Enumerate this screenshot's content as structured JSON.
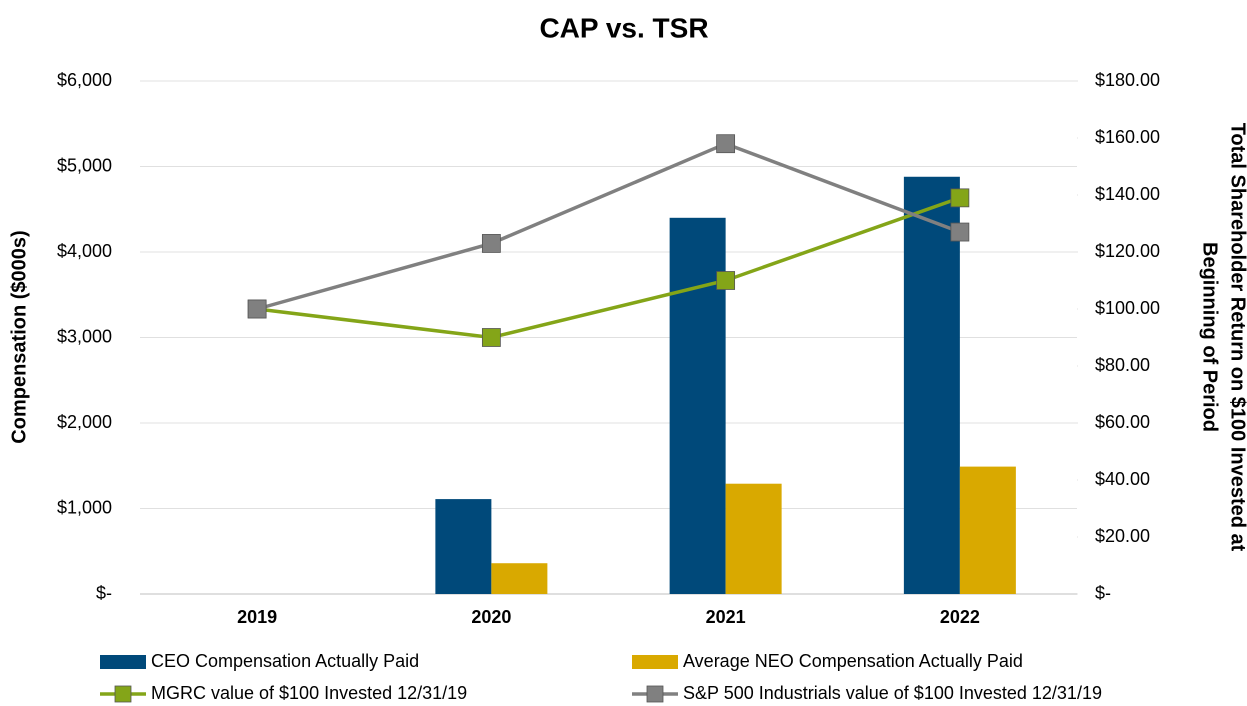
{
  "chart_data": {
    "type": "bar",
    "title": "CAP vs. TSR",
    "ylabel": "Compensation ($000s)",
    "y2label": [
      "Total Shareholder Return on $100 Invested at",
      "Beginning of Period"
    ],
    "categories": [
      "2019",
      "2020",
      "2021",
      "2022"
    ],
    "ylim": [
      0,
      6000
    ],
    "yticks": [
      {
        "value": 0,
        "label": "$-"
      },
      {
        "value": 1000,
        "label": "$1,000"
      },
      {
        "value": 2000,
        "label": "$2,000"
      },
      {
        "value": 3000,
        "label": "$3,000"
      },
      {
        "value": 4000,
        "label": "$4,000"
      },
      {
        "value": 5000,
        "label": "$5,000"
      },
      {
        "value": 6000,
        "label": "$6,000"
      }
    ],
    "y2lim": [
      0,
      180
    ],
    "y2ticks": [
      {
        "value": 0,
        "label": "$-"
      },
      {
        "value": 20,
        "label": "$20.00"
      },
      {
        "value": 40,
        "label": "$40.00"
      },
      {
        "value": 60,
        "label": "$60.00"
      },
      {
        "value": 80,
        "label": "$80.00"
      },
      {
        "value": 100,
        "label": "$100.00"
      },
      {
        "value": 120,
        "label": "$120.00"
      },
      {
        "value": 140,
        "label": "$140.00"
      },
      {
        "value": 160,
        "label": "$160.00"
      },
      {
        "value": 180,
        "label": "$180.00"
      }
    ],
    "grid": true,
    "legend": "bottom",
    "series": [
      {
        "name": "CEO Compensation Actually Paid",
        "type": "bar",
        "color": "#00497a",
        "values": [
          null,
          1110,
          4400,
          4880
        ]
      },
      {
        "name": "Average NEO Compensation Actually Paid",
        "type": "bar",
        "color": "#d9a900",
        "values": [
          null,
          360,
          1290,
          1490
        ]
      },
      {
        "name": "MGRC value of $100 Invested 12/31/19",
        "type": "line",
        "axis": "y2",
        "color": "#84a518",
        "values": [
          100,
          90,
          110,
          139
        ]
      },
      {
        "name": "S&P 500 Industrials value of $100 Invested 12/31/19",
        "type": "line",
        "axis": "y2",
        "color": "#808080",
        "values": [
          100,
          123,
          158,
          127
        ]
      }
    ]
  }
}
